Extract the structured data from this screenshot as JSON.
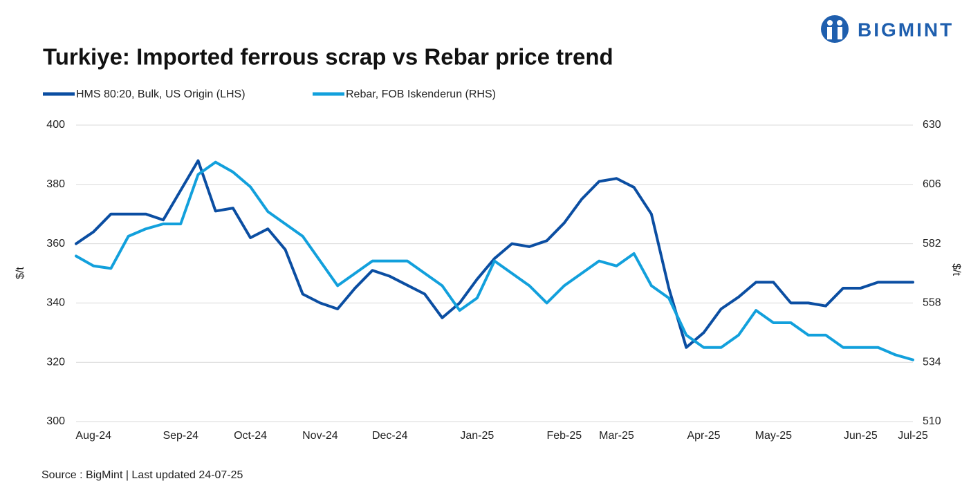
{
  "logo": "BIGMINT",
  "chart_data": {
    "type": "line",
    "title": "Turkiye: Imported ferrous scrap vs Rebar price trend",
    "ylabel": "$/t",
    "y2label": "$/t",
    "source": "Source : BigMint | Last updated 24-07-25",
    "categories": [
      null,
      "Aug-24",
      null,
      null,
      null,
      null,
      "Sep-24",
      null,
      null,
      null,
      "Oct-24",
      null,
      null,
      null,
      "Nov-24",
      null,
      null,
      null,
      "Dec-24",
      null,
      null,
      null,
      null,
      "Jan-25",
      null,
      null,
      null,
      null,
      "Feb-25",
      null,
      null,
      "Mar-25",
      null,
      null,
      null,
      null,
      "Apr-25",
      null,
      null,
      null,
      "May-25",
      null,
      null,
      null,
      null,
      "Jun-25",
      null,
      null,
      "Jul-25"
    ],
    "series": [
      {
        "name": "HMS 80:20, Bulk, US Origin (LHS)",
        "color": "#0b4ea2",
        "axis": "y",
        "values": [
          360,
          364,
          370,
          370,
          370,
          368,
          378,
          388,
          371,
          372,
          362,
          365,
          358,
          343,
          340,
          338,
          345,
          351,
          349,
          346,
          343,
          335,
          340,
          348,
          355,
          360,
          359,
          361,
          367,
          375,
          381,
          382,
          379,
          370,
          345,
          325,
          330,
          338,
          342,
          347,
          347,
          340,
          340,
          339,
          345,
          345,
          347,
          347,
          347
        ]
      },
      {
        "name": "Rebar, FOB Iskenderun (RHS)",
        "color": "#12a0dc",
        "axis": "y2",
        "values": [
          577,
          573,
          572,
          585,
          588,
          590,
          590,
          610,
          615,
          611,
          605,
          595,
          590,
          585,
          575,
          565,
          570,
          575,
          575,
          575,
          570,
          565,
          555,
          560,
          575,
          570,
          565,
          558,
          565,
          570,
          575,
          573,
          578,
          565,
          560,
          545,
          540,
          540,
          545,
          555,
          550,
          550,
          545,
          545,
          540,
          540,
          540,
          537,
          535
        ]
      }
    ],
    "ylim": [
      300,
      400
    ],
    "yticks": [
      300,
      320,
      340,
      360,
      380,
      400
    ],
    "y2lim": [
      510,
      630
    ],
    "y2ticks": [
      510,
      534,
      558,
      582,
      606,
      630
    ],
    "grid": true
  }
}
